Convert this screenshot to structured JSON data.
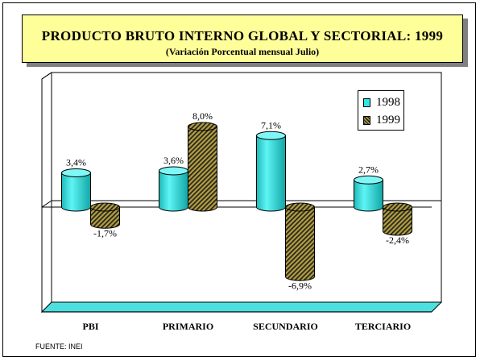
{
  "chart_data": {
    "type": "bar",
    "title": "PRODUCTO BRUTO INTERNO GLOBAL Y SECTORIAL: 1999",
    "subtitle": "(Variación Porcentual mensual Julio)",
    "categories": [
      "PBI",
      "PRIMARIO",
      "SECUNDARIO",
      "TERCIARIO"
    ],
    "series": [
      {
        "name": "1998",
        "values": [
          3.4,
          3.6,
          7.1,
          2.7
        ],
        "labels": [
          "3,4%",
          "3,6%",
          "7,1%",
          "2,7%"
        ],
        "color": "#33e6e6"
      },
      {
        "name": "1999",
        "values": [
          -1.7,
          8.0,
          -6.9,
          -2.4
        ],
        "labels": [
          "-1,7%",
          "8,0%",
          "-6,9%",
          "-2,4%"
        ],
        "color": "#b59f3b"
      }
    ],
    "ylim": [
      -8,
      10
    ],
    "legend_position": "top-right",
    "grid": false
  },
  "source": "FUENTE: INEI"
}
